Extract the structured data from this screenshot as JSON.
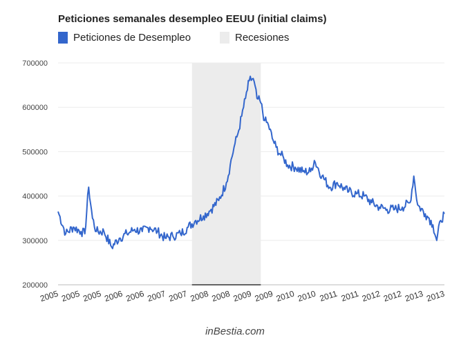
{
  "chart_data": {
    "type": "line",
    "title": "Peticiones semanales desempleo EEUU (initial claims)",
    "xlabel": "",
    "ylabel": "",
    "ylim": [
      200000,
      700000
    ],
    "yticks": [
      "700000",
      "600000",
      "500000",
      "400000",
      "300000",
      "200000"
    ],
    "xtick_labels": [
      "2005",
      "2005",
      "2005",
      "2006",
      "2006",
      "2007",
      "2007",
      "2008",
      "2008",
      "2009",
      "2009",
      "2010",
      "2010",
      "2011",
      "2011",
      "2012",
      "2012",
      "2013",
      "2013"
    ],
    "xlim": [
      "2005-01",
      "2013-06"
    ],
    "legend_position": "top-left",
    "colors": {
      "series": "#3366cc",
      "recession": "#ececec"
    },
    "recession": {
      "name": "Recesiones",
      "start": "2007-12",
      "end": "2009-06"
    },
    "series": [
      {
        "name": "Peticiones de Desempleo",
        "x": [
          "2005-01",
          "2005-03",
          "2005-05",
          "2005-07",
          "2005-08",
          "2005-09",
          "2005-10",
          "2005-11",
          "2006-01",
          "2006-03",
          "2006-05",
          "2006-07",
          "2006-09",
          "2006-11",
          "2007-01",
          "2007-03",
          "2007-05",
          "2007-07",
          "2007-09",
          "2007-11",
          "2008-01",
          "2008-03",
          "2008-05",
          "2008-07",
          "2008-09",
          "2008-10",
          "2008-11",
          "2008-12",
          "2009-01",
          "2009-02",
          "2009-03",
          "2009-04",
          "2009-05",
          "2009-06",
          "2009-07",
          "2009-08",
          "2009-09",
          "2009-10",
          "2009-11",
          "2009-12",
          "2010-01",
          "2010-03",
          "2010-05",
          "2010-07",
          "2010-08",
          "2010-10",
          "2010-12",
          "2011-02",
          "2011-04",
          "2011-05",
          "2011-07",
          "2011-09",
          "2011-11",
          "2012-01",
          "2012-03",
          "2012-05",
          "2012-07",
          "2012-09",
          "2012-10",
          "2012-11",
          "2013-01",
          "2013-02",
          "2013-03",
          "2013-04",
          "2013-05",
          "2013-06"
        ],
        "values": [
          365000,
          315000,
          330000,
          320000,
          315000,
          420000,
          350000,
          320000,
          320000,
          285000,
          305000,
          315000,
          325000,
          320000,
          330000,
          320000,
          305000,
          310000,
          315000,
          330000,
          345000,
          355000,
          370000,
          390000,
          430000,
          470000,
          510000,
          540000,
          580000,
          620000,
          660000,
          665000,
          620000,
          610000,
          570000,
          560000,
          530000,
          510000,
          495000,
          485000,
          470000,
          465000,
          455000,
          455000,
          480000,
          445000,
          420000,
          430000,
          415000,
          410000,
          405000,
          400000,
          385000,
          375000,
          370000,
          370000,
          375000,
          385000,
          445000,
          380000,
          360000,
          350000,
          335000,
          300000,
          345000,
          360000
        ]
      }
    ]
  },
  "watermark": "inBestia.com"
}
